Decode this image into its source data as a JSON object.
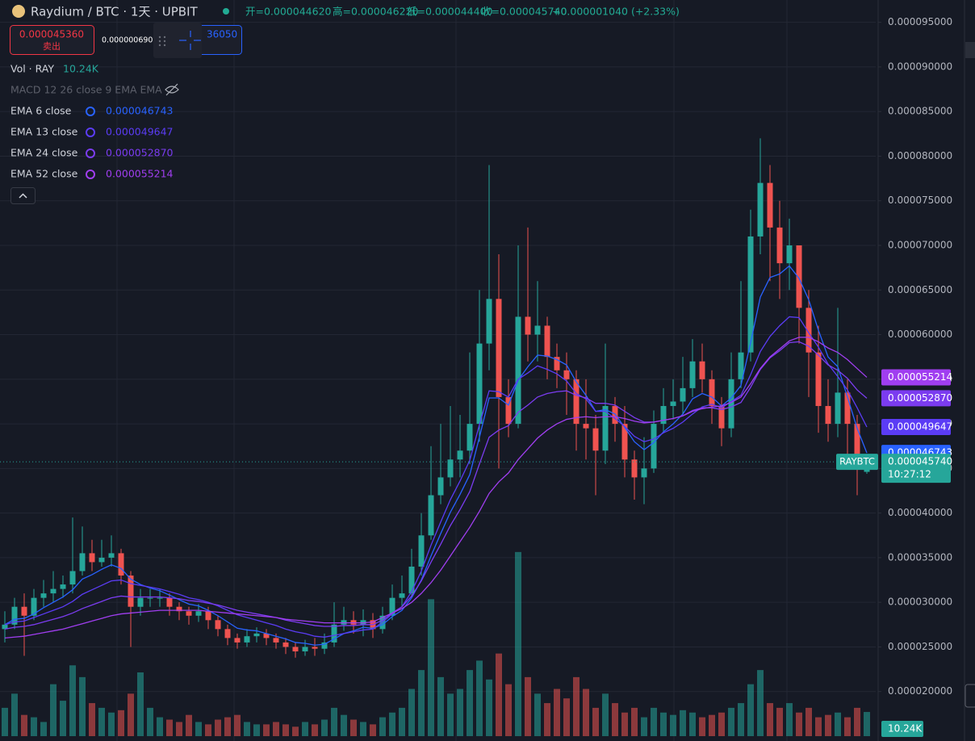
{
  "header": {
    "title": "Raydium / BTC · 1天 · UPBIT",
    "ohlc": [
      "开=0.000044620",
      "高=0.000046220",
      "低=0.000044400",
      "收=0.000045740",
      "+0.000001040 (+2.33%)"
    ],
    "sell_price": "0.000045360",
    "sell_label": "卖出",
    "spread": "0.000000690",
    "buy_price": "36050",
    "vol_label": "Vol · RAY",
    "macd_label": "MACD 12 26 close 9 EMA EMA"
  },
  "chart_data": {
    "type": "candlestick",
    "symbol_tag": "RAYBTC",
    "countdown": "10:27:12",
    "up_color": "#26a69a",
    "down_color": "#ef5350",
    "grid": true,
    "ylim": [
      1.5e-05,
      9.75e-05
    ],
    "yticks": [
      {
        "value": 9.5e-05,
        "label": "0.000095000"
      },
      {
        "value": 9e-05,
        "label": "0.000090000"
      },
      {
        "value": 8.5e-05,
        "label": "0.000085000"
      },
      {
        "value": 8e-05,
        "label": "0.000080000"
      },
      {
        "value": 7.5e-05,
        "label": "0.000075000"
      },
      {
        "value": 7e-05,
        "label": "0.000070000"
      },
      {
        "value": 6.5e-05,
        "label": "0.000065000"
      },
      {
        "value": 6e-05,
        "label": "0.000060000"
      },
      {
        "value": 5.5e-05,
        "label": "0.000055000"
      },
      {
        "value": 5e-05,
        "label": "0.000050000"
      },
      {
        "value": 4.5e-05,
        "label": "0.000045000"
      },
      {
        "value": 4e-05,
        "label": "0.000040000"
      },
      {
        "value": 3.5e-05,
        "label": "0.000035000"
      },
      {
        "value": 3e-05,
        "label": "0.000030000"
      },
      {
        "value": 2.5e-05,
        "label": "0.000025000"
      },
      {
        "value": 2e-05,
        "label": "0.000020000"
      }
    ],
    "open": [
      2.7e-05,
      2.75e-05,
      2.95e-05,
      2.85e-05,
      3.05e-05,
      3.1e-05,
      3.15e-05,
      3.2e-05,
      3.35e-05,
      3.55e-05,
      3.45e-05,
      3.5e-05,
      3.55e-05,
      3.3e-05,
      2.95e-05,
      3.05e-05,
      3.05e-05,
      3.05e-05,
      2.95e-05,
      2.9e-05,
      2.85e-05,
      2.9e-05,
      2.8e-05,
      2.7e-05,
      2.6e-05,
      2.55e-05,
      2.62e-05,
      2.65e-05,
      2.6e-05,
      2.55e-05,
      2.5e-05,
      2.45e-05,
      2.5e-05,
      2.48e-05,
      2.55e-05,
      2.75e-05,
      2.8e-05,
      2.75e-05,
      2.8e-05,
      2.7e-05,
      2.85e-05,
      3.05e-05,
      3.1e-05,
      3.4e-05,
      3.75e-05,
      4.2e-05,
      4.4e-05,
      4.6e-05,
      4.7e-05,
      5e-05,
      5.9e-05,
      6.4e-05,
      5.3e-05,
      5e-05,
      6.2e-05,
      6e-05,
      6.1e-05,
      5.75e-05,
      5.6e-05,
      5.5e-05,
      5e-05,
      4.95e-05,
      4.7e-05,
      5.2e-05,
      5e-05,
      4.6e-05,
      4.4e-05,
      4.5e-05,
      5e-05,
      5.2e-05,
      5.25e-05,
      5.4e-05,
      5.7e-05,
      5.5e-05,
      5.2e-05,
      4.95e-05,
      5.5e-05,
      5.8e-05,
      7.1e-05,
      7.7e-05,
      7.2e-05,
      6.8e-05,
      7e-05,
      6.3e-05,
      5.8e-05,
      5.2e-05,
      5e-05,
      5.35e-05,
      5e-05,
      4.462e-05
    ],
    "high": [
      2.9e-05,
      3.05e-05,
      3.1e-05,
      3.15e-05,
      3.25e-05,
      3.35e-05,
      3.3e-05,
      3.95e-05,
      3.85e-05,
      3.7e-05,
      3.7e-05,
      3.75e-05,
      3.6e-05,
      3.35e-05,
      3.15e-05,
      3.15e-05,
      3.15e-05,
      3.1e-05,
      3e-05,
      2.95e-05,
      2.98e-05,
      2.95e-05,
      2.85e-05,
      2.75e-05,
      2.65e-05,
      2.7e-05,
      2.72e-05,
      2.7e-05,
      2.65e-05,
      2.6e-05,
      2.55e-05,
      2.58e-05,
      2.6e-05,
      2.65e-05,
      3e-05,
      2.95e-05,
      2.9e-05,
      2.92e-05,
      2.88e-05,
      2.95e-05,
      3.2e-05,
      3.3e-05,
      3.6e-05,
      4e-05,
      4.75e-05,
      5e-05,
      5.2e-05,
      5.1e-05,
      5.8e-05,
      6.5e-05,
      7.9e-05,
      6.9e-05,
      5.5e-05,
      7e-05,
      7.2e-05,
      6.6e-05,
      6.2e-05,
      5.9e-05,
      5.8e-05,
      5.6e-05,
      5.5e-05,
      5.1e-05,
      5.9e-05,
      5.3e-05,
      5.2e-05,
      4.7e-05,
      4.85e-05,
      5.15e-05,
      5.4e-05,
      5.5e-05,
      5.75e-05,
      5.95e-05,
      5.9e-05,
      5.6e-05,
      5.3e-05,
      5.8e-05,
      6.6e-05,
      7.4e-05,
      8.2e-05,
      7.9e-05,
      7.5e-05,
      7.3e-05,
      7e-05,
      6.5e-05,
      6.1e-05,
      5.5e-05,
      6.3e-05,
      5.5e-05,
      5.1e-05,
      4.622e-05
    ],
    "low": [
      2.55e-05,
      2.7e-05,
      2.4e-05,
      2.8e-05,
      2.95e-05,
      3e-05,
      3.05e-05,
      3.1e-05,
      3.3e-05,
      3.35e-05,
      3.4e-05,
      3.4e-05,
      3.2e-05,
      2.5e-05,
      2.85e-05,
      2.95e-05,
      2.95e-05,
      2.85e-05,
      2.8e-05,
      2.75e-05,
      2.78e-05,
      2.7e-05,
      2.62e-05,
      2.52e-05,
      2.48e-05,
      2.5e-05,
      2.55e-05,
      2.52e-05,
      2.48e-05,
      2.42e-05,
      2.38e-05,
      2.4e-05,
      2.4e-05,
      2.42e-05,
      2.5e-05,
      2.68e-05,
      2.65e-05,
      2.62e-05,
      2.6e-05,
      2.65e-05,
      2.8e-05,
      2.95e-05,
      3.05e-05,
      3.3e-05,
      3.7e-05,
      4.1e-05,
      4.3e-05,
      4.4e-05,
      4.55e-05,
      4.8e-05,
      5.6e-05,
      4.5e-05,
      4.85e-05,
      4.95e-05,
      5.7e-05,
      5.7e-05,
      5.5e-05,
      5.4e-05,
      5.1e-05,
      4.7e-05,
      4.6e-05,
      4.2e-05,
      4.55e-05,
      4.8e-05,
      4.4e-05,
      4.15e-05,
      4.1e-05,
      4.45e-05,
      4.9e-05,
      5.05e-05,
      5.1e-05,
      5.3e-05,
      5.35e-05,
      5e-05,
      4.75e-05,
      4.85e-05,
      5.4e-05,
      5.7e-05,
      6.9e-05,
      6.6e-05,
      6.4e-05,
      6.5e-05,
      5.9e-05,
      5.3e-05,
      4.9e-05,
      4.8e-05,
      4.85e-05,
      4.6e-05,
      4.2e-05,
      4.44e-05
    ],
    "close": [
      2.75e-05,
      2.95e-05,
      2.85e-05,
      3.05e-05,
      3.1e-05,
      3.15e-05,
      3.2e-05,
      3.35e-05,
      3.55e-05,
      3.45e-05,
      3.5e-05,
      3.55e-05,
      3.3e-05,
      2.95e-05,
      3.05e-05,
      3.05e-05,
      3.05e-05,
      2.95e-05,
      2.9e-05,
      2.85e-05,
      2.9e-05,
      2.8e-05,
      2.7e-05,
      2.6e-05,
      2.55e-05,
      2.62e-05,
      2.65e-05,
      2.6e-05,
      2.55e-05,
      2.5e-05,
      2.45e-05,
      2.5e-05,
      2.48e-05,
      2.55e-05,
      2.75e-05,
      2.8e-05,
      2.75e-05,
      2.8e-05,
      2.7e-05,
      2.85e-05,
      3.05e-05,
      3.1e-05,
      3.4e-05,
      3.75e-05,
      4.2e-05,
      4.4e-05,
      4.6e-05,
      4.7e-05,
      5e-05,
      5.9e-05,
      6.4e-05,
      5.3e-05,
      5e-05,
      6.2e-05,
      6e-05,
      6.1e-05,
      5.75e-05,
      5.6e-05,
      5.5e-05,
      5e-05,
      4.95e-05,
      4.7e-05,
      5.2e-05,
      5e-05,
      4.6e-05,
      4.4e-05,
      4.5e-05,
      5e-05,
      5.2e-05,
      5.25e-05,
      5.4e-05,
      5.7e-05,
      5.5e-05,
      5.2e-05,
      4.95e-05,
      5.5e-05,
      5.8e-05,
      7.1e-05,
      7.7e-05,
      7.2e-05,
      6.8e-05,
      7e-05,
      6.3e-05,
      5.8e-05,
      5.2e-05,
      5e-05,
      5.35e-05,
      5e-05,
      4.5e-05,
      4.574e-05
    ],
    "close_label": "0.000045740",
    "volume": {
      "ylim": [
        0,
        80000
      ],
      "value_label": "10.24K",
      "values": [
        12000,
        18000,
        9000,
        8000,
        6000,
        22000,
        15000,
        30000,
        25000,
        14000,
        12000,
        10000,
        11000,
        18000,
        27000,
        12000,
        8000,
        7000,
        6000,
        9000,
        6000,
        5000,
        7000,
        8000,
        9000,
        6000,
        5000,
        5000,
        6000,
        5000,
        4000,
        6000,
        5000,
        7000,
        12000,
        9000,
        7000,
        6000,
        5000,
        8000,
        10000,
        12000,
        20000,
        28000,
        58000,
        25000,
        18000,
        20000,
        28000,
        32000,
        24000,
        35000,
        22000,
        78000,
        25000,
        18000,
        14000,
        20000,
        16000,
        25000,
        20000,
        12000,
        18000,
        14000,
        10000,
        12000,
        8000,
        12000,
        10000,
        9000,
        11000,
        10000,
        8000,
        9000,
        10000,
        12000,
        14000,
        22000,
        28000,
        14000,
        12000,
        14000,
        10000,
        12000,
        8000,
        9000,
        10000,
        8000,
        12000,
        10240
      ]
    },
    "series": [
      {
        "name": "EMA 6 close",
        "color": "#2962ff",
        "value_label": "0.000046743",
        "values": [
          2.75e-05,
          2.81e-05,
          2.82e-05,
          2.87e-05,
          2.94e-05,
          3e-05,
          3.06e-05,
          3.14e-05,
          3.26e-05,
          3.31e-05,
          3.37e-05,
          3.42e-05,
          3.38e-05,
          3.26e-05,
          3.2e-05,
          3.16e-05,
          3.13e-05,
          3.08e-05,
          3.03e-05,
          2.98e-05,
          2.96e-05,
          2.91e-05,
          2.85e-05,
          2.78e-05,
          2.71e-05,
          2.69e-05,
          2.68e-05,
          2.65e-05,
          2.62e-05,
          2.59e-05,
          2.55e-05,
          2.54e-05,
          2.52e-05,
          2.53e-05,
          2.59e-05,
          2.65e-05,
          2.68e-05,
          2.72e-05,
          2.71e-05,
          2.75e-05,
          2.84e-05,
          2.91e-05,
          3.05e-05,
          3.25e-05,
          3.52e-05,
          3.77e-05,
          4.01e-05,
          4.21e-05,
          4.43e-05,
          4.85e-05,
          5.29e-05,
          5.29e-05,
          5.21e-05,
          5.49e-05,
          5.64e-05,
          5.77e-05,
          5.76e-05,
          5.72e-05,
          5.66e-05,
          5.47e-05,
          5.32e-05,
          5.14e-05,
          5.16e-05,
          5.11e-05,
          4.96e-05,
          4.8e-05,
          4.71e-05,
          4.79e-05,
          4.91e-05,
          5e-05,
          5.11e-05,
          5.28e-05,
          5.34e-05,
          5.3e-05,
          5.2e-05,
          5.29e-05,
          5.43e-05,
          5.91e-05,
          6.42e-05,
          6.64e-05,
          6.68e-05,
          6.77e-05,
          6.63e-05,
          6.39e-05,
          6.05e-05,
          5.75e-05,
          5.64e-05,
          5.3e-05,
          4.95e-05,
          4.6743e-05
        ]
      },
      {
        "name": "EMA 13 close",
        "color": "#5b3cf5",
        "value_label": "0.000049647",
        "values": [
          2.75e-05,
          2.78e-05,
          2.79e-05,
          2.83e-05,
          2.87e-05,
          2.91e-05,
          2.95e-05,
          3.01e-05,
          3.09e-05,
          3.14e-05,
          3.19e-05,
          3.24e-05,
          3.25e-05,
          3.21e-05,
          3.19e-05,
          3.17e-05,
          3.15e-05,
          3.12e-05,
          3.09e-05,
          3.05e-05,
          3.03e-05,
          3e-05,
          2.96e-05,
          2.91e-05,
          2.86e-05,
          2.83e-05,
          2.8e-05,
          2.77e-05,
          2.74e-05,
          2.7e-05,
          2.67e-05,
          2.65e-05,
          2.62e-05,
          2.61e-05,
          2.63e-05,
          2.65e-05,
          2.67e-05,
          2.69e-05,
          2.7e-05,
          2.78e-05,
          2.87e-05,
          2.95e-05,
          3.12e-05,
          3.35e-05,
          3.64e-05,
          3.9e-05,
          4.15e-05,
          4.36e-05,
          4.59e-05,
          4.99e-05,
          5.37e-05,
          5.36e-05,
          5.3e-05,
          5.5e-05,
          5.57e-05,
          5.65e-05,
          5.61e-05,
          5.56e-05,
          5.48e-05,
          5.34e-05,
          5.28e-05,
          5.14e-05,
          5.14e-05,
          5.06e-05,
          4.97e-05,
          4.86e-05,
          4.8e-05,
          4.83e-05,
          4.9e-05,
          4.95e-05,
          5.02e-05,
          5.11e-05,
          5.19e-05,
          5.22e-05,
          5.18e-05,
          5.25e-05,
          5.32e-05,
          5.55e-05,
          5.81e-05,
          5.98e-05,
          6.1e-05,
          6.2e-05,
          6.19e-05,
          6.02e-05,
          5.86e-05,
          5.67e-05,
          5.53e-05,
          5.38e-05,
          5.18e-05,
          4.9647e-05
        ]
      },
      {
        "name": "EMA 24 close",
        "color": "#7b3cf0",
        "value_label": "0.000052870",
        "values": [
          2.7e-05,
          2.72e-05,
          2.73e-05,
          2.75e-05,
          2.78e-05,
          2.81e-05,
          2.84e-05,
          2.88e-05,
          2.93e-05,
          2.97e-05,
          3.01e-05,
          3.05e-05,
          3.07e-05,
          3.06e-05,
          3.06e-05,
          3.06e-05,
          3.06e-05,
          3.05e-05,
          3.04e-05,
          3.02e-05,
          3.01e-05,
          2.99e-05,
          2.97e-05,
          2.94e-05,
          2.91e-05,
          2.89e-05,
          2.87e-05,
          2.85e-05,
          2.83e-05,
          2.8e-05,
          2.78e-05,
          2.76e-05,
          2.74e-05,
          2.73e-05,
          2.73e-05,
          2.74e-05,
          2.74e-05,
          2.75e-05,
          2.75e-05,
          2.8e-05,
          2.88e-05,
          2.95e-05,
          3.07e-05,
          3.24e-05,
          3.45e-05,
          3.65e-05,
          3.86e-05,
          4.04e-05,
          4.24e-05,
          4.55e-05,
          4.85e-05,
          4.93e-05,
          4.98e-05,
          5.13e-05,
          5.21e-05,
          5.3e-05,
          5.34e-05,
          5.36e-05,
          5.37e-05,
          5.32e-05,
          5.29e-05,
          5.23e-05,
          5.23e-05,
          5.21e-05,
          5.14e-05,
          5.07e-05,
          5.02e-05,
          5.02e-05,
          5.04e-05,
          5.06e-05,
          5.09e-05,
          5.15e-05,
          5.18e-05,
          5.18e-05,
          5.16e-05,
          5.19e-05,
          5.24e-05,
          5.41e-05,
          5.61e-05,
          5.74e-05,
          5.82e-05,
          5.91e-05,
          5.92e-05,
          5.87e-05,
          5.77e-05,
          5.66e-05,
          5.6e-05,
          5.51e-05,
          5.38e-05,
          5.287e-05
        ]
      },
      {
        "name": "EMA 52 close",
        "color": "#a03ef0",
        "value_label": "0.000055214",
        "values": [
          2.6e-05,
          2.61e-05,
          2.62e-05,
          2.64e-05,
          2.66e-05,
          2.68e-05,
          2.7e-05,
          2.73e-05,
          2.76e-05,
          2.79e-05,
          2.82e-05,
          2.85e-05,
          2.87e-05,
          2.88e-05,
          2.89e-05,
          2.9e-05,
          2.91e-05,
          2.91e-05,
          2.91e-05,
          2.91e-05,
          2.91e-05,
          2.9e-05,
          2.89e-05,
          2.88e-05,
          2.87e-05,
          2.86e-05,
          2.85e-05,
          2.84e-05,
          2.83e-05,
          2.81e-05,
          2.8e-05,
          2.79e-05,
          2.78e-05,
          2.77e-05,
          2.77e-05,
          2.77e-05,
          2.77e-05,
          2.77e-05,
          2.78e-05,
          2.83e-05,
          2.88e-05,
          2.93e-05,
          3e-05,
          3.1e-05,
          3.22e-05,
          3.36e-05,
          3.52e-05,
          3.68e-05,
          3.84e-05,
          4.02e-05,
          4.22e-05,
          4.35e-05,
          4.45e-05,
          4.6e-05,
          4.72e-05,
          4.84e-05,
          4.93e-05,
          5e-05,
          5.05e-05,
          5.07e-05,
          5.08e-05,
          5.07e-05,
          5.08e-05,
          5.08e-05,
          5.06e-05,
          5.03e-05,
          5.01e-05,
          5.02e-05,
          5.04e-05,
          5.06e-05,
          5.09e-05,
          5.14e-05,
          5.17e-05,
          5.19e-05,
          5.2e-05,
          5.24e-05,
          5.3e-05,
          5.45e-05,
          5.62e-05,
          5.75e-05,
          5.84e-05,
          5.93e-05,
          5.97e-05,
          5.97e-05,
          5.92e-05,
          5.85e-05,
          5.8e-05,
          5.72e-05,
          5.62e-05,
          5.5214e-05
        ]
      }
    ]
  }
}
